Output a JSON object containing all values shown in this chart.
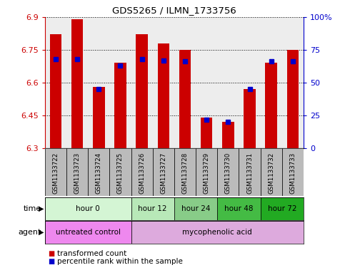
{
  "title": "GDS5265 / ILMN_1733756",
  "samples": [
    "GSM1133722",
    "GSM1133723",
    "GSM1133724",
    "GSM1133725",
    "GSM1133726",
    "GSM1133727",
    "GSM1133728",
    "GSM1133729",
    "GSM1133730",
    "GSM1133731",
    "GSM1133732",
    "GSM1133733"
  ],
  "bar_heights": [
    6.82,
    6.89,
    6.58,
    6.69,
    6.82,
    6.78,
    6.75,
    6.44,
    6.42,
    6.57,
    6.69,
    6.75
  ],
  "percentile_values": [
    68,
    68,
    45,
    63,
    68,
    67,
    66,
    22,
    20,
    45,
    66,
    66
  ],
  "ylim": [
    6.3,
    6.9
  ],
  "yticks": [
    6.3,
    6.45,
    6.6,
    6.75,
    6.9
  ],
  "ytick_labels": [
    "6.3",
    "6.45",
    "6.6",
    "6.75",
    "6.9"
  ],
  "right_yticks": [
    0,
    25,
    50,
    75,
    100
  ],
  "right_ytick_labels": [
    "0",
    "25",
    "50",
    "75",
    "100%"
  ],
  "bar_color": "#cc0000",
  "percentile_color": "#0000cc",
  "bar_base": 6.3,
  "time_groups": [
    {
      "label": "hour 0",
      "indices": [
        0,
        1,
        2,
        3
      ],
      "color": "#d4f5d4"
    },
    {
      "label": "hour 12",
      "indices": [
        4,
        5
      ],
      "color": "#b8e8b8"
    },
    {
      "label": "hour 24",
      "indices": [
        6,
        7
      ],
      "color": "#88cc88"
    },
    {
      "label": "hour 48",
      "indices": [
        8,
        9
      ],
      "color": "#44bb44"
    },
    {
      "label": "hour 72",
      "indices": [
        10,
        11
      ],
      "color": "#22aa22"
    }
  ],
  "agent_groups": [
    {
      "label": "untreated control",
      "indices": [
        0,
        1,
        2,
        3
      ],
      "color": "#ee88ee"
    },
    {
      "label": "mycophenolic acid",
      "indices": [
        4,
        5,
        6,
        7,
        8,
        9,
        10,
        11
      ],
      "color": "#ddaadd"
    }
  ],
  "legend_red": "transformed count",
  "legend_blue": "percentile rank within the sample",
  "sample_bg": "#bbbbbb",
  "plot_bg": "#ffffff"
}
